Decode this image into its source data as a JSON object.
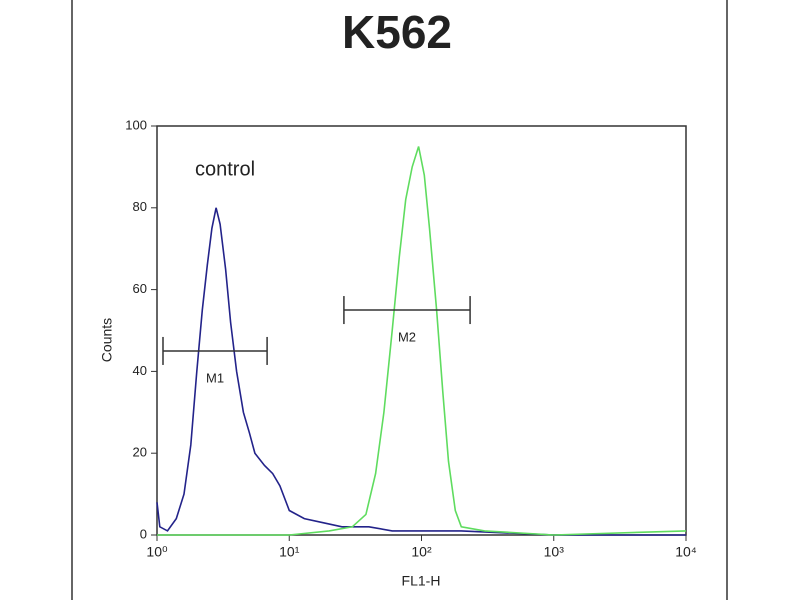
{
  "chart_data": {
    "type": "line",
    "title": "K562",
    "x_label": "FL1-H",
    "y_label": "Counts",
    "xscale": "log",
    "xlim": [
      1,
      10000
    ],
    "ylim": [
      0,
      100
    ],
    "xticks": [
      {
        "value": 1,
        "label": "10⁰"
      },
      {
        "value": 10,
        "label": "10¹"
      },
      {
        "value": 100,
        "label": "10²"
      },
      {
        "value": 1000,
        "label": "10³"
      },
      {
        "value": 10000,
        "label": "10⁴"
      }
    ],
    "yticks": [
      0,
      20,
      40,
      60,
      80,
      100
    ],
    "annotations": [
      {
        "text": "control"
      }
    ],
    "series": [
      {
        "name": "control",
        "color": "#23238a",
        "x": [
          1.0,
          1.05,
          1.2,
          1.4,
          1.6,
          1.8,
          2.0,
          2.2,
          2.4,
          2.6,
          2.8,
          3.0,
          3.3,
          3.6,
          4.0,
          4.5,
          5.0,
          5.5,
          6.5,
          7.5,
          8.5,
          10,
          13,
          18,
          25,
          40,
          60,
          100,
          200,
          1000,
          10000
        ],
        "values": [
          8,
          2,
          1,
          4,
          10,
          22,
          40,
          55,
          66,
          75,
          80,
          76,
          65,
          52,
          40,
          30,
          25,
          20,
          17,
          15,
          12,
          6,
          4,
          3,
          2,
          2,
          1,
          1,
          1,
          0,
          0
        ]
      },
      {
        "color": "#5fdc5f",
        "x": [
          1,
          10,
          20,
          30,
          38,
          45,
          52,
          60,
          68,
          76,
          85,
          95,
          105,
          115,
          130,
          145,
          160,
          180,
          200,
          300,
          1000,
          10000
        ],
        "values": [
          0,
          0,
          1,
          2,
          5,
          15,
          30,
          50,
          68,
          82,
          90,
          95,
          88,
          75,
          55,
          35,
          18,
          6,
          2,
          1,
          0,
          1
        ]
      }
    ],
    "markers": [
      {
        "label": "M1",
        "x": [
          1.11,
          6.8
        ],
        "y": 45
      },
      {
        "label": "M2",
        "x": [
          25.9,
          233
        ],
        "y": 55
      }
    ]
  }
}
